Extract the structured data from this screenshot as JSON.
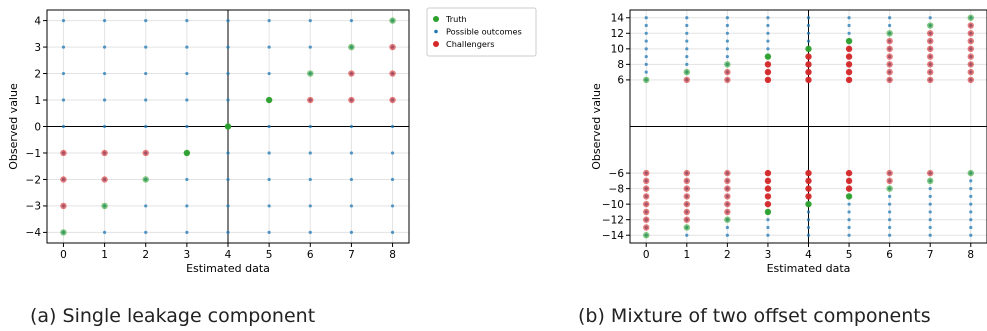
{
  "legend": {
    "items": [
      {
        "label": "Truth",
        "color": "#2ca02c"
      },
      {
        "label": "Possible outcomes",
        "color": "#1f77b4"
      },
      {
        "label": "Challengers",
        "color": "#d62728"
      }
    ]
  },
  "chart_data": [
    {
      "type": "scatter",
      "xlabel": "Estimated data",
      "ylabel": "Observed value",
      "caption": "(a) Single leakage component",
      "xlim": [
        -0.4,
        8.4
      ],
      "ylim": [
        -4.4,
        4.4
      ],
      "xticks": [
        0,
        1,
        2,
        3,
        4,
        5,
        6,
        7,
        8
      ],
      "yticks": [
        -4,
        -3,
        -2,
        -1,
        0,
        1,
        2,
        3,
        4
      ],
      "grid": true,
      "axis_lines": {
        "x": 4,
        "y": 0
      },
      "series": [
        {
          "name": "Truth",
          "points": [
            [
              0,
              -4
            ],
            [
              1,
              -3
            ],
            [
              2,
              -2
            ],
            [
              3,
              -1
            ],
            [
              4,
              0
            ],
            [
              5,
              1
            ],
            [
              6,
              2
            ],
            [
              7,
              3
            ],
            [
              8,
              4
            ]
          ]
        },
        {
          "name": "Possible outcomes",
          "x_range": [
            0,
            8
          ],
          "y_range": [
            -4,
            4
          ]
        },
        {
          "name": "Challengers",
          "points": [
            [
              0,
              -1
            ],
            [
              0,
              -2
            ],
            [
              0,
              -3
            ],
            [
              1,
              -1
            ],
            [
              1,
              -2
            ],
            [
              2,
              -1
            ],
            [
              6,
              1
            ],
            [
              7,
              1
            ],
            [
              7,
              2
            ],
            [
              8,
              1
            ],
            [
              8,
              2
            ],
            [
              8,
              3
            ]
          ]
        }
      ]
    },
    {
      "type": "scatter",
      "xlabel": "Estimated data",
      "ylabel": "Observed value",
      "caption": "(b) Mixture of two offset components",
      "xlim": [
        -0.4,
        8.4
      ],
      "ylim": [
        -15,
        15
      ],
      "xticks": [
        0,
        1,
        2,
        3,
        4,
        5,
        6,
        7,
        8
      ],
      "yticks": [
        -14,
        -12,
        -10,
        -8,
        -6,
        6,
        8,
        10,
        12,
        14
      ],
      "grid": true,
      "axis_lines": {
        "x": 4,
        "y": 0
      },
      "series": [
        {
          "name": "Truth",
          "points": [
            [
              0,
              6
            ],
            [
              1,
              7
            ],
            [
              2,
              8
            ],
            [
              3,
              9
            ],
            [
              4,
              10
            ],
            [
              5,
              11
            ],
            [
              6,
              12
            ],
            [
              7,
              13
            ],
            [
              8,
              14
            ],
            [
              0,
              -14
            ],
            [
              1,
              -13
            ],
            [
              2,
              -12
            ],
            [
              3,
              -11
            ],
            [
              4,
              -10
            ],
            [
              5,
              -9
            ],
            [
              6,
              -8
            ],
            [
              7,
              -7
            ],
            [
              8,
              -6
            ]
          ]
        },
        {
          "name": "Possible outcomes",
          "x_range": [
            0,
            8
          ],
          "y_ranges": [
            [
              6,
              14
            ],
            [
              -14,
              -6
            ]
          ]
        },
        {
          "name": "Challengers",
          "points": [
            [
              1,
              6
            ],
            [
              2,
              6
            ],
            [
              2,
              7
            ],
            [
              3,
              6
            ],
            [
              3,
              7
            ],
            [
              3,
              8
            ],
            [
              4,
              6
            ],
            [
              4,
              7
            ],
            [
              4,
              8
            ],
            [
              4,
              9
            ],
            [
              5,
              6
            ],
            [
              5,
              7
            ],
            [
              5,
              8
            ],
            [
              5,
              9
            ],
            [
              5,
              10
            ],
            [
              6,
              6
            ],
            [
              6,
              7
            ],
            [
              6,
              8
            ],
            [
              6,
              9
            ],
            [
              6,
              10
            ],
            [
              6,
              11
            ],
            [
              7,
              6
            ],
            [
              7,
              7
            ],
            [
              7,
              8
            ],
            [
              7,
              9
            ],
            [
              7,
              10
            ],
            [
              7,
              11
            ],
            [
              7,
              12
            ],
            [
              8,
              6
            ],
            [
              8,
              7
            ],
            [
              8,
              8
            ],
            [
              8,
              9
            ],
            [
              8,
              10
            ],
            [
              8,
              11
            ],
            [
              8,
              12
            ],
            [
              8,
              13
            ],
            [
              0,
              -6
            ],
            [
              0,
              -7
            ],
            [
              0,
              -8
            ],
            [
              0,
              -9
            ],
            [
              0,
              -10
            ],
            [
              0,
              -11
            ],
            [
              0,
              -12
            ],
            [
              0,
              -13
            ],
            [
              1,
              -6
            ],
            [
              1,
              -7
            ],
            [
              1,
              -8
            ],
            [
              1,
              -9
            ],
            [
              1,
              -10
            ],
            [
              1,
              -11
            ],
            [
              1,
              -12
            ],
            [
              2,
              -6
            ],
            [
              2,
              -7
            ],
            [
              2,
              -8
            ],
            [
              2,
              -9
            ],
            [
              2,
              -10
            ],
            [
              2,
              -11
            ],
            [
              3,
              -6
            ],
            [
              3,
              -7
            ],
            [
              3,
              -8
            ],
            [
              3,
              -9
            ],
            [
              3,
              -10
            ],
            [
              4,
              -6
            ],
            [
              4,
              -7
            ],
            [
              4,
              -8
            ],
            [
              4,
              -9
            ],
            [
              5,
              -6
            ],
            [
              5,
              -7
            ],
            [
              5,
              -8
            ],
            [
              6,
              -6
            ],
            [
              6,
              -7
            ],
            [
              7,
              -6
            ]
          ]
        }
      ]
    }
  ]
}
